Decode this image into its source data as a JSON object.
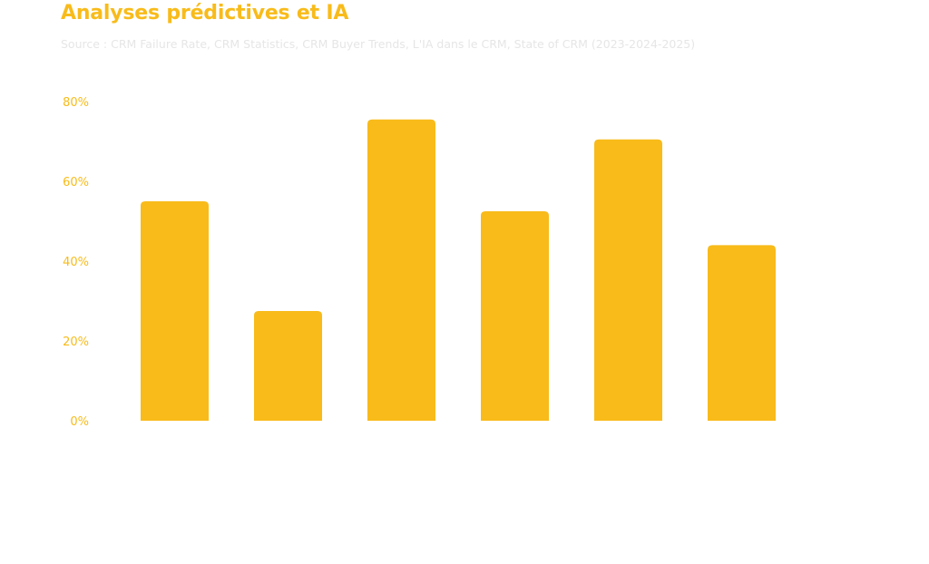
{
  "header": {
    "title": "Analyses prédictives et IA",
    "source": "Source : CRM Failure Rate, CRM Statistics, CRM Buyer Trends, L'IA dans le CRM, State of CRM (2023-2024-2025)"
  },
  "colors": {
    "accent": "#F8BB1A",
    "title": "#F8BB1A",
    "subtitle": "#E6E6E6",
    "tick_label": "#F8BB1A",
    "background": "#FFFFFF"
  },
  "chart_data": {
    "type": "bar",
    "categories": [
      "",
      "",
      "",
      "",
      "",
      ""
    ],
    "values": [
      55,
      27.5,
      75.5,
      52.5,
      70.5,
      44
    ],
    "title": "Analyses prédictives et IA",
    "xlabel": "",
    "ylabel": "",
    "ylim": [
      0,
      80
    ],
    "y_ticks": [
      0,
      20,
      40,
      60,
      80
    ],
    "y_tick_labels": [
      "0%",
      "20%",
      "40%",
      "60%",
      "80%"
    ],
    "unit": "%",
    "grid": false,
    "legend": "none"
  }
}
